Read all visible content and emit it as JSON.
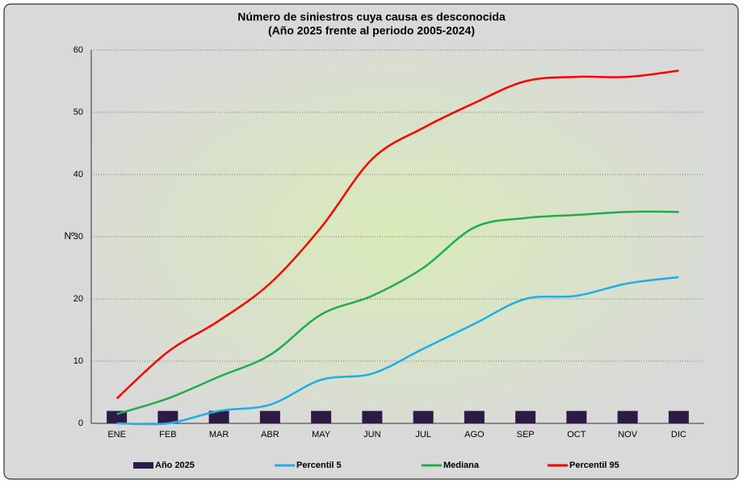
{
  "chart_data": {
    "type": "combo",
    "title": "Número de siniestros cuya causa es desconocida",
    "subtitle": "(Año 2025 frente al periodo 2005-2024)",
    "y_label": "Nº",
    "categories": [
      "ENE",
      "FEB",
      "MAR",
      "ABR",
      "MAY",
      "JUN",
      "JUL",
      "AGO",
      "SEP",
      "OCT",
      "NOV",
      "DIC"
    ],
    "series": [
      {
        "name": "Año 2025",
        "type": "bar",
        "color": "#2e1a47",
        "values": [
          2,
          2,
          2,
          2,
          2,
          2,
          2,
          2,
          2,
          2,
          2,
          2
        ]
      },
      {
        "name": "Percentil 5",
        "type": "line",
        "color": "#1eaee8",
        "values": [
          0,
          0,
          2,
          3,
          7,
          8,
          12,
          16,
          20,
          20.5,
          22.5,
          23.5
        ]
      },
      {
        "name": "Mediana",
        "type": "line",
        "color": "#1fac4b",
        "values": [
          1.5,
          4,
          7.5,
          11,
          17.5,
          20.5,
          25,
          31.5,
          33,
          33.5,
          34,
          34
        ]
      },
      {
        "name": "Percentil 95",
        "type": "line",
        "color": "#ff0000",
        "values": [
          4,
          11.5,
          16.5,
          22.5,
          31.5,
          42.5,
          47.5,
          51.5,
          55,
          55.7,
          55.7,
          56.7
        ]
      }
    ],
    "ylim": [
      0,
      60
    ],
    "yticks": [
      0,
      10,
      20,
      30,
      40,
      50,
      60
    ],
    "grid": true,
    "legend": "bottom"
  }
}
